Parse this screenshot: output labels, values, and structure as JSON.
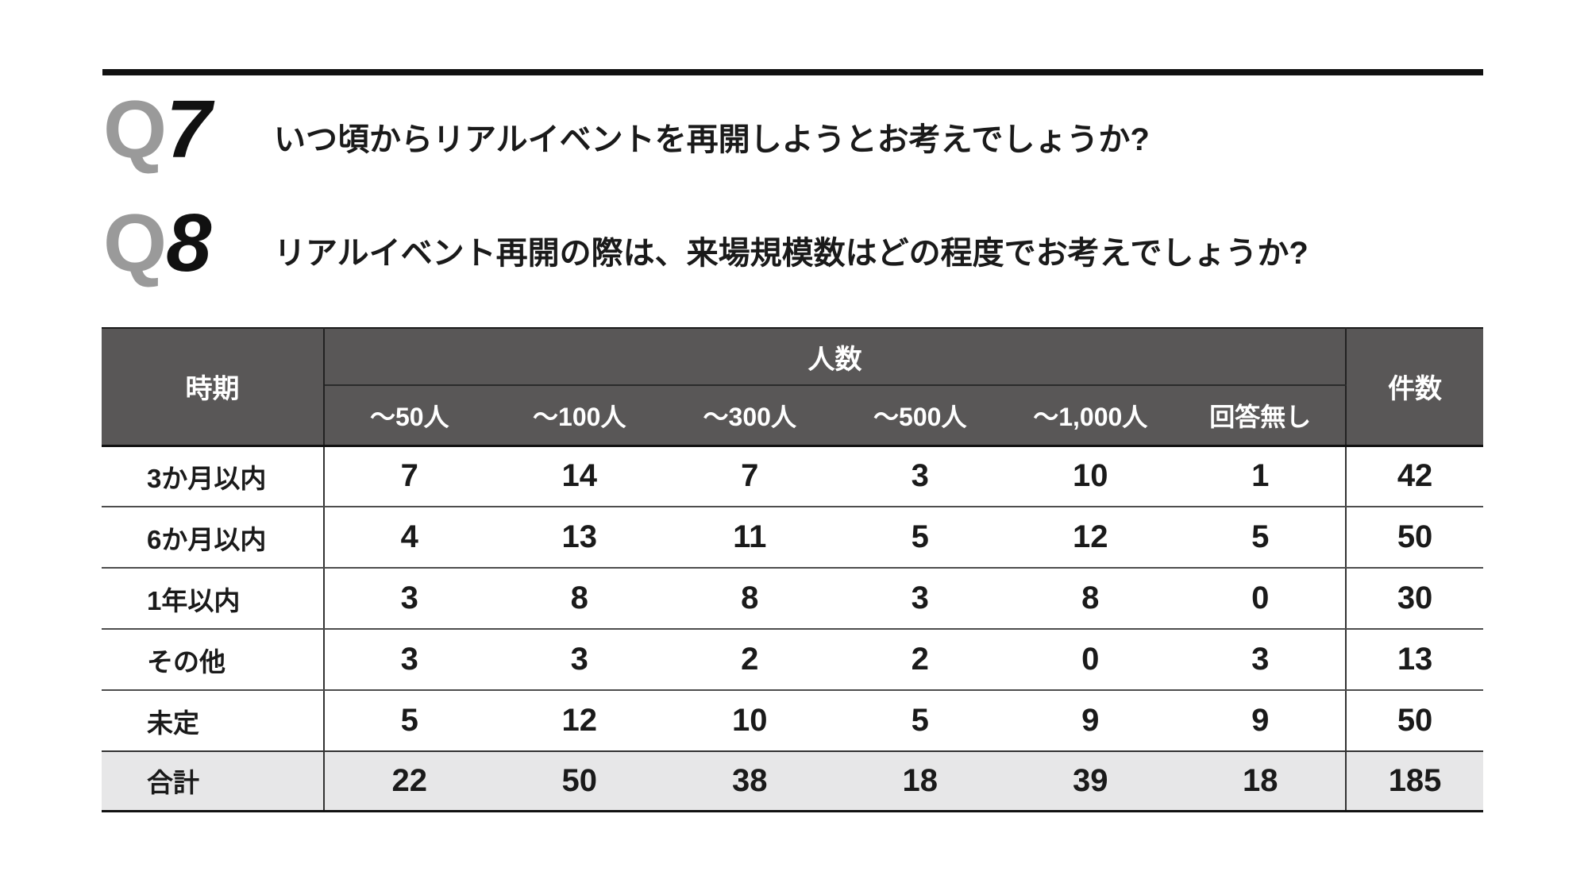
{
  "questions": [
    {
      "id": "Q7",
      "letter": "Q",
      "number": "7",
      "text": "いつ頃からリアルイベントを再開しようとお考えでしょうか?"
    },
    {
      "id": "Q8",
      "letter": "Q",
      "number": "8",
      "text": "リアルイベント再開の際は、来場規模数はどの程度でお考えでしょうか?"
    }
  ],
  "table": {
    "corner_header": "時期",
    "group_header": "人数",
    "col_headers": [
      "〜50人",
      "〜100人",
      "〜300人",
      "〜500人",
      "〜1,000人",
      "回答無し"
    ],
    "total_col_header": "件数",
    "rows": [
      {
        "label": "3か月以内",
        "values": [
          "7",
          "14",
          "7",
          "3",
          "10",
          "1"
        ],
        "total": "42"
      },
      {
        "label": "6か月以内",
        "values": [
          "4",
          "13",
          "11",
          "5",
          "12",
          "5"
        ],
        "total": "50"
      },
      {
        "label": "1年以内",
        "values": [
          "3",
          "8",
          "8",
          "3",
          "8",
          "0"
        ],
        "total": "30"
      },
      {
        "label": "その他",
        "values": [
          "3",
          "3",
          "2",
          "2",
          "0",
          "3"
        ],
        "total": "13"
      },
      {
        "label": "未定",
        "values": [
          "5",
          "12",
          "10",
          "5",
          "9",
          "9"
        ],
        "total": "50"
      }
    ],
    "total_row": {
      "label": "合計",
      "values": [
        "22",
        "50",
        "38",
        "18",
        "39",
        "18"
      ],
      "total": "185"
    }
  },
  "colors": {
    "header_bg": "#595757",
    "header_text": "#ffffff",
    "total_row_bg": "#e7e7e8",
    "q_letter_gray": "#9a9a9a",
    "text_black": "#1a1a1a"
  },
  "chart_data": {
    "type": "table",
    "title": "リアルイベント再開時期 × 来場規模数",
    "columns": [
      "時期",
      "〜50人",
      "〜100人",
      "〜300人",
      "〜500人",
      "〜1,000人",
      "回答無し",
      "件数"
    ],
    "rows": [
      [
        "3か月以内",
        7,
        14,
        7,
        3,
        10,
        1,
        42
      ],
      [
        "6か月以内",
        4,
        13,
        11,
        5,
        12,
        5,
        50
      ],
      [
        "1年以内",
        3,
        8,
        8,
        3,
        8,
        0,
        30
      ],
      [
        "その他",
        3,
        3,
        2,
        2,
        0,
        3,
        13
      ],
      [
        "未定",
        5,
        12,
        10,
        5,
        9,
        9,
        50
      ],
      [
        "合計",
        22,
        50,
        38,
        18,
        39,
        18,
        185
      ]
    ]
  }
}
